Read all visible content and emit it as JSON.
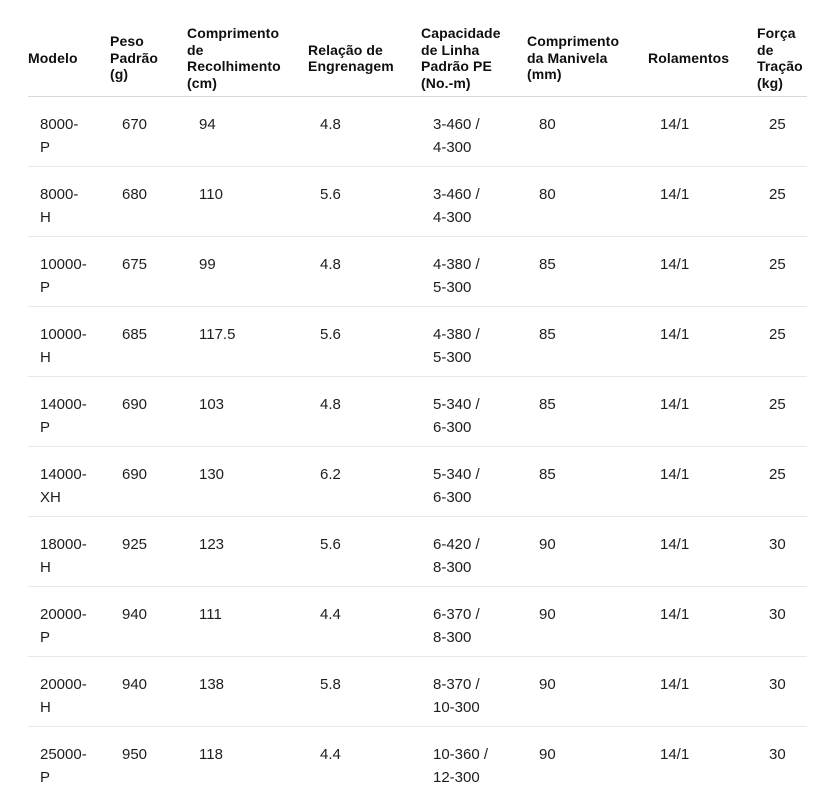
{
  "table": {
    "columns": [
      "Modelo",
      "Peso\nPadrão\n(g)",
      "Comprimento\nde\nRecolhimento\n(cm)",
      "Relação de\nEngrenagem",
      "Capacidade\nde Linha\nPadrão PE\n(No.-m)",
      "Comprimento\nda Manivela\n(mm)",
      "Rolamentos",
      "Força\nde\nTração\n(kg)"
    ],
    "rows": [
      [
        "8000-\nP",
        "670",
        "94",
        "4.8",
        "3-460 /\n4-300",
        "80",
        "14/1",
        "25"
      ],
      [
        "8000-\nH",
        "680",
        "110",
        "5.6",
        "3-460 /\n4-300",
        "80",
        "14/1",
        "25"
      ],
      [
        "10000-\nP",
        "675",
        "99",
        "4.8",
        "4-380 /\n5-300",
        "85",
        "14/1",
        "25"
      ],
      [
        "10000-\nH",
        "685",
        "117.5",
        "5.6",
        "4-380 /\n5-300",
        "85",
        "14/1",
        "25"
      ],
      [
        "14000-\nP",
        "690",
        "103",
        "4.8",
        "5-340 /\n6-300",
        "85",
        "14/1",
        "25"
      ],
      [
        "14000-\nXH",
        "690",
        "130",
        "6.2",
        "5-340 /\n6-300",
        "85",
        "14/1",
        "25"
      ],
      [
        "18000-\nH",
        "925",
        "123",
        "5.6",
        "6-420 /\n8-300",
        "90",
        "14/1",
        "30"
      ],
      [
        "20000-\nP",
        "940",
        "111",
        "4.4",
        "6-370 /\n8-300",
        "90",
        "14/1",
        "30"
      ],
      [
        "20000-\nH",
        "940",
        "138",
        "5.8",
        "8-370 /\n10-300",
        "90",
        "14/1",
        "30"
      ],
      [
        "25000-\nP",
        "950",
        "118",
        "4.4",
        "10-360 /\n12-300",
        "90",
        "14/1",
        "30"
      ]
    ],
    "colors": {
      "header_rule": "#d9d9d9",
      "row_rule": "#e8e8e8",
      "header_text": "#0f0f0f",
      "body_text": "#1e1e1e",
      "background": "#ffffff"
    }
  }
}
